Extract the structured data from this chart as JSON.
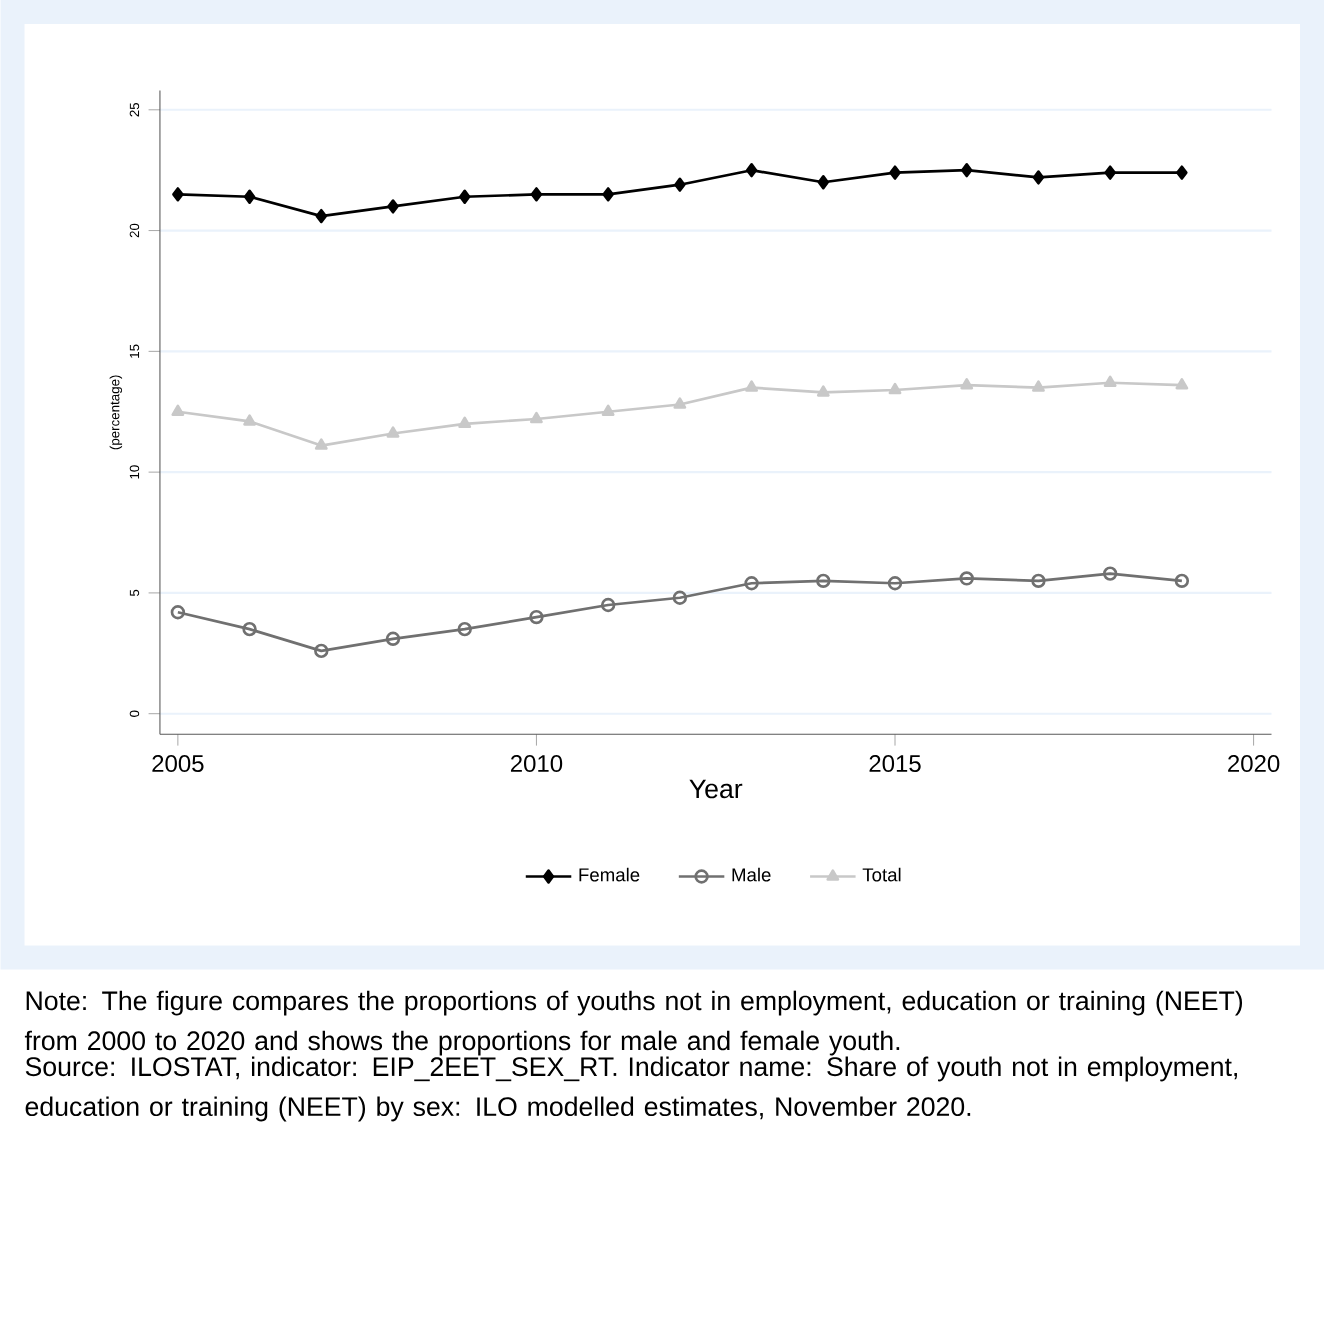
{
  "chart_data": {
    "type": "line",
    "xlabel": "Year",
    "ylabel": "(percentage)",
    "x": [
      2005,
      2006,
      2007,
      2008,
      2009,
      2010,
      2011,
      2012,
      2013,
      2014,
      2015,
      2016,
      2017,
      2018,
      2019
    ],
    "series": [
      {
        "name": "Female",
        "color": "#000000",
        "marker": "diamond",
        "values": [
          21.5,
          21.4,
          20.6,
          21.0,
          21.4,
          21.5,
          21.5,
          21.9,
          22.5,
          22.0,
          22.4,
          22.5,
          22.2,
          22.4,
          22.4
        ]
      },
      {
        "name": "Male",
        "color": "#707070",
        "marker": "circle",
        "values": [
          4.2,
          3.5,
          2.6,
          3.1,
          3.5,
          4.0,
          4.5,
          4.8,
          5.4,
          5.5,
          5.4,
          5.6,
          5.5,
          5.8,
          5.5
        ]
      },
      {
        "name": "Total",
        "color": "#c8c8c8",
        "marker": "triangle",
        "values": [
          12.5,
          12.1,
          11.1,
          11.6,
          12.0,
          12.2,
          12.5,
          12.8,
          13.5,
          13.3,
          13.4,
          13.6,
          13.5,
          13.7,
          13.6
        ]
      }
    ],
    "xlim": [
      2004.75,
      2020.25
    ],
    "xticks": [
      2005,
      2010,
      2015,
      2020
    ],
    "ylim": [
      -0.85,
      25.8
    ],
    "yticks": [
      0,
      5,
      10,
      15,
      20,
      25
    ],
    "grid": "y",
    "legend": "bottom",
    "line_style": "solid",
    "annotations": [
      "Note: The figure compares the proportions of youths not in employment, education or training (NEET) from 2000 to 2020 and shows the proportions for male and female youth.",
      "Source: ILOSTAT, indicator: EIP_2EET_SEX_RT. Indicator name: Share of youth not in employment, education or training (NEET) by sex: ILO modelled estimates, November 2020."
    ]
  }
}
